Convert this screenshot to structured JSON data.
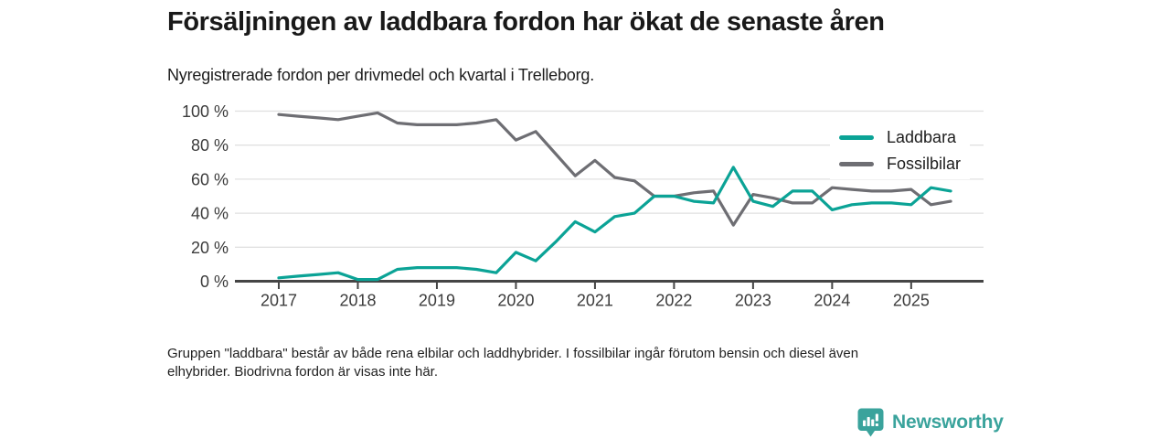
{
  "header": {
    "title": "Försäljningen av laddbara fordon har ökat de senaste åren",
    "subtitle": "Nyregistrerade fordon per drivmedel och kvartal i Trelleborg."
  },
  "chart_data": {
    "type": "line",
    "unit": "%",
    "grid": "horizontal",
    "legend_position": "top-right-inside",
    "ylim": [
      0,
      100
    ],
    "y_ticks": [
      {
        "value": 0,
        "label": "0 %"
      },
      {
        "value": 20,
        "label": "20 %"
      },
      {
        "value": 40,
        "label": "40 %"
      },
      {
        "value": 60,
        "label": "60 %"
      },
      {
        "value": 80,
        "label": "80 %"
      },
      {
        "value": 100,
        "label": "100 %"
      }
    ],
    "x_label_years": [
      "2017",
      "2018",
      "2019",
      "2020",
      "2021",
      "2022",
      "2023",
      "2024",
      "2025"
    ],
    "x": [
      "2017 Q1",
      "2017 Q2",
      "2017 Q3",
      "2017 Q4",
      "2018 Q1",
      "2018 Q2",
      "2018 Q3",
      "2018 Q4",
      "2019 Q1",
      "2019 Q2",
      "2019 Q3",
      "2019 Q4",
      "2020 Q1",
      "2020 Q2",
      "2020 Q3",
      "2020 Q4",
      "2021 Q1",
      "2021 Q2",
      "2021 Q3",
      "2021 Q4",
      "2022 Q1",
      "2022 Q2",
      "2022 Q3",
      "2022 Q4",
      "2023 Q1",
      "2023 Q2",
      "2023 Q3",
      "2023 Q4",
      "2024 Q1",
      "2024 Q2",
      "2024 Q3",
      "2024 Q4",
      "2025 Q1",
      "2025 Q2",
      "2025 Q3"
    ],
    "series": [
      {
        "name": "Laddbara",
        "color": "#0ba396",
        "values": [
          2,
          3,
          4,
          5,
          1,
          1,
          7,
          8,
          8,
          8,
          7,
          5,
          17,
          12,
          23,
          35,
          29,
          38,
          40,
          50,
          50,
          47,
          46,
          67,
          47,
          44,
          53,
          53,
          42,
          45,
          46,
          46,
          45,
          55,
          53
        ]
      },
      {
        "name": "Fossilbilar",
        "color": "#6e6e73",
        "values": [
          98,
          97,
          96,
          95,
          97,
          99,
          93,
          92,
          92,
          92,
          93,
          95,
          83,
          88,
          75,
          62,
          71,
          61,
          59,
          50,
          50,
          52,
          53,
          33,
          51,
          49,
          46,
          46,
          55,
          54,
          53,
          53,
          54,
          45,
          47
        ]
      }
    ]
  },
  "theme": {
    "text": "#1d1d1d",
    "tick_text": "#3c3c3c",
    "grid": "#e0e0e0",
    "axis": "#454545",
    "logo": "#3aa39c"
  },
  "footnote": {
    "line1": "Gruppen \"laddbara\" består av både rena elbilar och laddhybrider. I fossilbilar ingår förutom bensin och diesel även",
    "line2": "elhybrider. Biodrivna fordon är visas inte här."
  },
  "logo": {
    "brand": "Newsworthy"
  }
}
